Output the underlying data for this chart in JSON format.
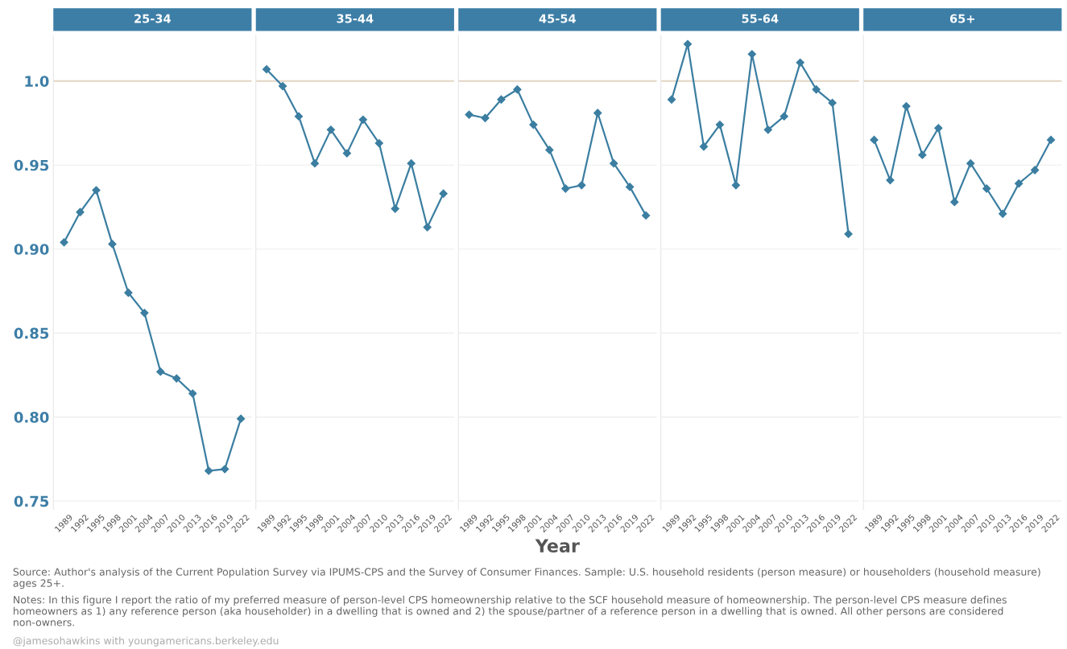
{
  "chart_data": [
    {
      "type": "line",
      "title": "25-34",
      "x": [
        1989,
        1992,
        1995,
        1998,
        2001,
        2004,
        2007,
        2010,
        2013,
        2016,
        2019,
        2022
      ],
      "series": [
        {
          "color": "#3b7ea1",
          "values": [
            0.904,
            0.922,
            0.935,
            0.903,
            0.874,
            0.862,
            0.827,
            0.823,
            0.814,
            0.768,
            0.769,
            0.799
          ]
        }
      ],
      "xlim": [
        1987,
        2024
      ],
      "xticks": [
        1989,
        1992,
        1995,
        1998,
        2001,
        2004,
        2007,
        2010,
        2013,
        2016,
        2019,
        2022
      ],
      "ylim": [
        0.745,
        1.027
      ],
      "yticks": [
        {
          "value": 0.75,
          "label": "0.75"
        },
        {
          "value": 0.8,
          "label": "0.80"
        },
        {
          "value": 0.85,
          "label": "0.85"
        },
        {
          "value": 0.9,
          "label": "0.90"
        },
        {
          "value": 0.95,
          "label": "0.95"
        },
        {
          "value": 1.0,
          "label": "1.0"
        }
      ],
      "ref_lines": [
        {
          "axis": "y",
          "value": 1.0,
          "color": "#e3d5c4"
        }
      ],
      "grid": "y",
      "marker": "diamond",
      "line_style": "solid",
      "annotations": [
        "Source: Author's analysis of the Current Population Survey via IPUMS-CPS and the Survey of Consumer Finances. Sample: U.S. household residents (person measure) or householders (household measure) ages 25+.",
        "Notes: In this figure I report the ratio of my preferred measure of person-level CPS homeownership relative to the SCF household measure of homeownership. The person-level CPS measure defines homeowners as 1) any reference person (aka householder) in a dwelling that is owned and 2) the spouse/partner of a reference person in a dwelling that is owned. All other persons are considered non-owners.",
        "@jamesohawkins with youngamericans.berkeley.edu"
      ]
    },
    {
      "type": "line",
      "title": "35-44",
      "x": [
        1989,
        1992,
        1995,
        1998,
        2001,
        2004,
        2007,
        2010,
        2013,
        2016,
        2019,
        2022
      ],
      "series": [
        {
          "color": "#3b7ea1",
          "values": [
            1.007,
            0.997,
            0.979,
            0.951,
            0.971,
            0.957,
            0.977,
            0.963,
            0.924,
            0.951,
            0.913,
            0.933
          ]
        }
      ],
      "xlim": [
        1987,
        2024
      ],
      "xticks": [
        1989,
        1992,
        1995,
        1998,
        2001,
        2004,
        2007,
        2010,
        2013,
        2016,
        2019,
        2022
      ],
      "ylim": [
        0.745,
        1.027
      ],
      "yticks": [
        0.75,
        0.8,
        0.85,
        0.9,
        0.95,
        1.0
      ],
      "tick_labels": "x",
      "ref_lines": [
        {
          "axis": "y",
          "value": 1.0,
          "color": "#e3d5c4"
        }
      ],
      "grid": "y",
      "marker": "diamond",
      "line_style": "solid"
    },
    {
      "type": "line",
      "title": "45-54",
      "xlabel": "Year",
      "x": [
        1989,
        1992,
        1995,
        1998,
        2001,
        2004,
        2007,
        2010,
        2013,
        2016,
        2019,
        2022
      ],
      "series": [
        {
          "color": "#3b7ea1",
          "values": [
            0.98,
            0.978,
            0.989,
            0.995,
            0.974,
            0.959,
            0.936,
            0.938,
            0.981,
            0.951,
            0.937,
            0.92
          ]
        }
      ],
      "xlim": [
        1987,
        2024
      ],
      "xticks": [
        1989,
        1992,
        1995,
        1998,
        2001,
        2004,
        2007,
        2010,
        2013,
        2016,
        2019,
        2022
      ],
      "ylim": [
        0.745,
        1.027
      ],
      "yticks": [
        0.75,
        0.8,
        0.85,
        0.9,
        0.95,
        1.0
      ],
      "tick_labels": "x",
      "ref_lines": [
        {
          "axis": "y",
          "value": 1.0,
          "color": "#e3d5c4"
        }
      ],
      "grid": "y",
      "marker": "diamond",
      "line_style": "solid"
    },
    {
      "type": "line",
      "title": "55-64",
      "x": [
        1989,
        1992,
        1995,
        1998,
        2001,
        2004,
        2007,
        2010,
        2013,
        2016,
        2019,
        2022
      ],
      "series": [
        {
          "color": "#3b7ea1",
          "values": [
            0.989,
            1.022,
            0.961,
            0.974,
            0.938,
            1.016,
            0.971,
            0.979,
            1.011,
            0.995,
            0.987,
            0.909
          ]
        }
      ],
      "xlim": [
        1987,
        2024
      ],
      "xticks": [
        1989,
        1992,
        1995,
        1998,
        2001,
        2004,
        2007,
        2010,
        2013,
        2016,
        2019,
        2022
      ],
      "ylim": [
        0.745,
        1.027
      ],
      "yticks": [
        0.75,
        0.8,
        0.85,
        0.9,
        0.95,
        1.0
      ],
      "tick_labels": "x",
      "ref_lines": [
        {
          "axis": "y",
          "value": 1.0,
          "color": "#e3d5c4"
        }
      ],
      "grid": "y",
      "marker": "diamond",
      "line_style": "solid"
    },
    {
      "type": "line",
      "title": "65+",
      "x": [
        1989,
        1992,
        1995,
        1998,
        2001,
        2004,
        2007,
        2010,
        2013,
        2016,
        2019,
        2022
      ],
      "series": [
        {
          "color": "#3b7ea1",
          "values": [
            0.965,
            0.941,
            0.985,
            0.956,
            0.972,
            0.928,
            0.951,
            0.936,
            0.921,
            0.939,
            0.947,
            0.965
          ]
        }
      ],
      "xlim": [
        1987,
        2024
      ],
      "xticks": [
        1989,
        1992,
        1995,
        1998,
        2001,
        2004,
        2007,
        2010,
        2013,
        2016,
        2019,
        2022
      ],
      "ylim": [
        0.745,
        1.027
      ],
      "yticks": [
        0.75,
        0.8,
        0.85,
        0.9,
        0.95,
        1.0
      ],
      "tick_labels": "x",
      "ref_lines": [
        {
          "axis": "y",
          "value": 1.0,
          "color": "#e3d5c4"
        }
      ],
      "grid": "y",
      "marker": "diamond",
      "line_style": "solid"
    }
  ]
}
